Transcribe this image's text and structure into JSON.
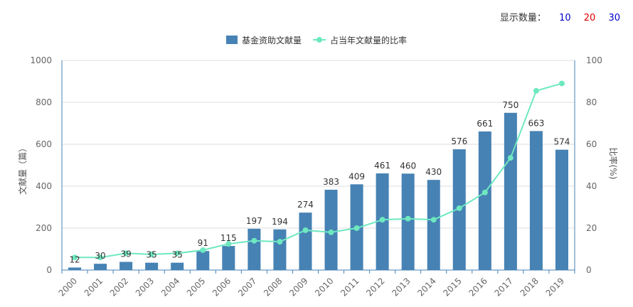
{
  "controls": {
    "show_count_label": "显示数量：",
    "options": [
      {
        "label": "10",
        "color": "#0000cc"
      },
      {
        "label": "20",
        "color": "#dd0000"
      },
      {
        "label": "30",
        "color": "#0000cc"
      }
    ]
  },
  "chart_data": {
    "type": "bar",
    "categories": [
      "2000",
      "2001",
      "2002",
      "2003",
      "2004",
      "2005",
      "2006",
      "2007",
      "2008",
      "2009",
      "2010",
      "2011",
      "2012",
      "2013",
      "2014",
      "2015",
      "2016",
      "2017",
      "2018",
      "2019"
    ],
    "series": [
      {
        "name": "基金资助文献量",
        "type": "bar",
        "axis": "left",
        "color": "#4682b4",
        "values": [
          12,
          30,
          39,
          35,
          35,
          91,
          115,
          197,
          194,
          274,
          383,
          409,
          461,
          460,
          430,
          576,
          661,
          750,
          663,
          574
        ],
        "show_data_labels": true
      },
      {
        "name": "占当年文献量的比率",
        "type": "line",
        "axis": "right",
        "color": "#6ee8c0",
        "values": [
          6,
          6,
          8,
          7.5,
          8,
          9.5,
          12.5,
          14,
          13.5,
          19,
          18,
          20,
          24,
          24.5,
          24,
          29.5,
          37,
          53.5,
          85.5,
          89
        ]
      }
    ],
    "y_left": {
      "label": "文献量（篇）",
      "ylim": [
        0,
        1000
      ],
      "ticks": [
        0,
        200,
        400,
        600,
        800,
        1000
      ]
    },
    "y_right": {
      "label": "比率(%)",
      "ylim": [
        0,
        100
      ],
      "ticks": [
        0,
        20,
        40,
        60,
        80,
        100
      ]
    },
    "grid": true,
    "legend_position": "top-center"
  }
}
